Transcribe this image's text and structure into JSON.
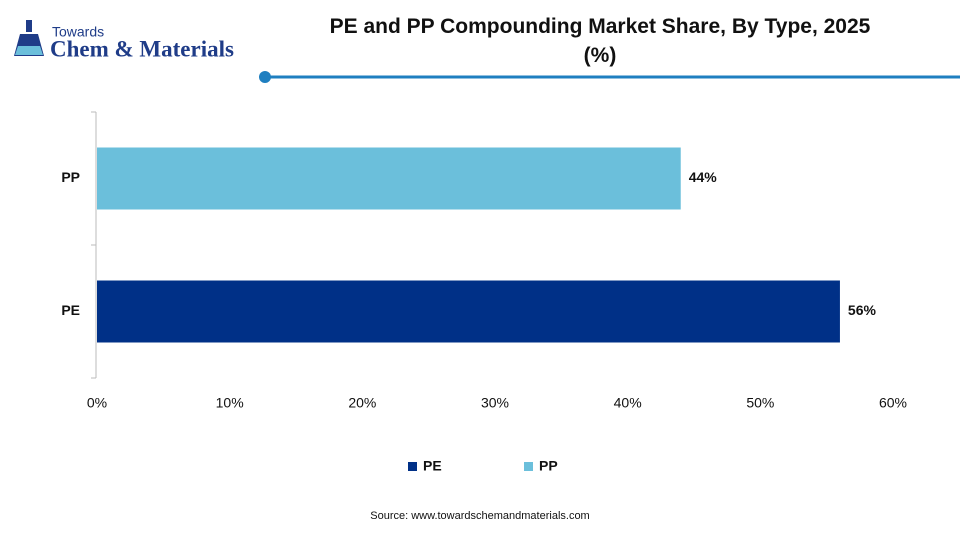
{
  "logo": {
    "top": "Towards",
    "brand": "Chem & Materials"
  },
  "chart_data": {
    "type": "bar",
    "orientation": "horizontal",
    "title": "PE and PP Compounding Market Share, By Type, 2025 (%)",
    "categories": [
      "PE",
      "PP"
    ],
    "values": [
      56,
      44
    ],
    "value_labels": [
      "56%",
      "44%"
    ],
    "colors": [
      "#003087",
      "#6bbfdb"
    ],
    "xlim": [
      0,
      60
    ],
    "xticks": [
      {
        "value": 0,
        "label": "0%"
      },
      {
        "value": 10,
        "label": "10%"
      },
      {
        "value": 20,
        "label": "20%"
      },
      {
        "value": 30,
        "label": "30%"
      },
      {
        "value": 40,
        "label": "40%"
      },
      {
        "value": 50,
        "label": "50%"
      },
      {
        "value": 60,
        "label": "60%"
      }
    ],
    "grid": false,
    "legend": "bottom",
    "source": "Source:  www.towardschemandmaterials.com"
  }
}
